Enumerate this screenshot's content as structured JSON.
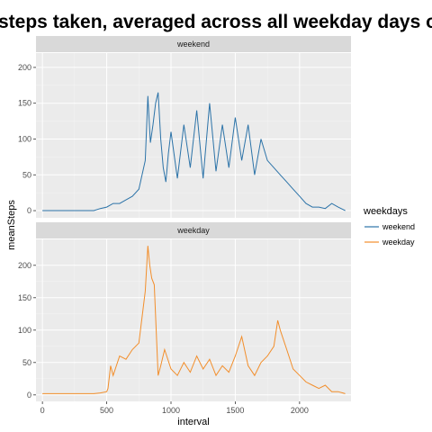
{
  "chart_data": {
    "type": "line",
    "title": "steps taken, averaged across all weekday days or weekend days",
    "xlabel": "interval",
    "ylabel": "meanSteps",
    "xlim": [
      -50,
      2400
    ],
    "x_ticks": [
      0,
      500,
      1000,
      1500,
      2000
    ],
    "y_ticks": [
      0,
      50,
      100,
      150,
      200
    ],
    "legend": {
      "title": "weekdays",
      "position": "right",
      "entries": [
        "weekend",
        "weekday"
      ]
    },
    "panels": [
      {
        "strip": "weekend",
        "ylim": [
          -10,
          220
        ],
        "color": "#2c73a8",
        "series_name": "weekend",
        "x": [
          0,
          100,
          200,
          300,
          400,
          450,
          500,
          550,
          600,
          650,
          700,
          750,
          800,
          820,
          840,
          860,
          880,
          900,
          920,
          940,
          960,
          980,
          1000,
          1050,
          1100,
          1150,
          1200,
          1250,
          1300,
          1350,
          1400,
          1450,
          1500,
          1550,
          1600,
          1650,
          1700,
          1750,
          1800,
          1850,
          1900,
          1950,
          2000,
          2050,
          2100,
          2150,
          2200,
          2250,
          2300,
          2355
        ],
        "y": [
          0,
          0,
          0,
          0,
          0,
          3,
          5,
          10,
          10,
          15,
          20,
          30,
          70,
          160,
          95,
          120,
          150,
          165,
          100,
          60,
          40,
          80,
          110,
          45,
          120,
          60,
          140,
          45,
          150,
          55,
          120,
          60,
          130,
          70,
          120,
          50,
          100,
          70,
          60,
          50,
          40,
          30,
          20,
          10,
          5,
          5,
          3,
          10,
          5,
          0
        ]
      },
      {
        "strip": "weekday",
        "ylim": [
          -10,
          240
        ],
        "color": "#f28e2b",
        "series_name": "weekday",
        "x": [
          0,
          100,
          200,
          300,
          400,
          450,
          500,
          510,
          530,
          550,
          600,
          650,
          700,
          750,
          800,
          820,
          835,
          850,
          870,
          900,
          920,
          950,
          1000,
          1050,
          1100,
          1150,
          1200,
          1250,
          1300,
          1350,
          1400,
          1450,
          1500,
          1550,
          1600,
          1650,
          1700,
          1750,
          1800,
          1830,
          1850,
          1900,
          1950,
          2000,
          2050,
          2100,
          2150,
          2200,
          2250,
          2300,
          2355
        ],
        "y": [
          2,
          2,
          2,
          2,
          2,
          3,
          5,
          10,
          45,
          30,
          60,
          55,
          70,
          80,
          160,
          230,
          200,
          180,
          170,
          30,
          45,
          70,
          40,
          30,
          50,
          35,
          60,
          40,
          55,
          30,
          45,
          35,
          60,
          90,
          45,
          30,
          50,
          60,
          75,
          115,
          100,
          70,
          40,
          30,
          20,
          15,
          10,
          15,
          5,
          5,
          2
        ]
      }
    ]
  }
}
